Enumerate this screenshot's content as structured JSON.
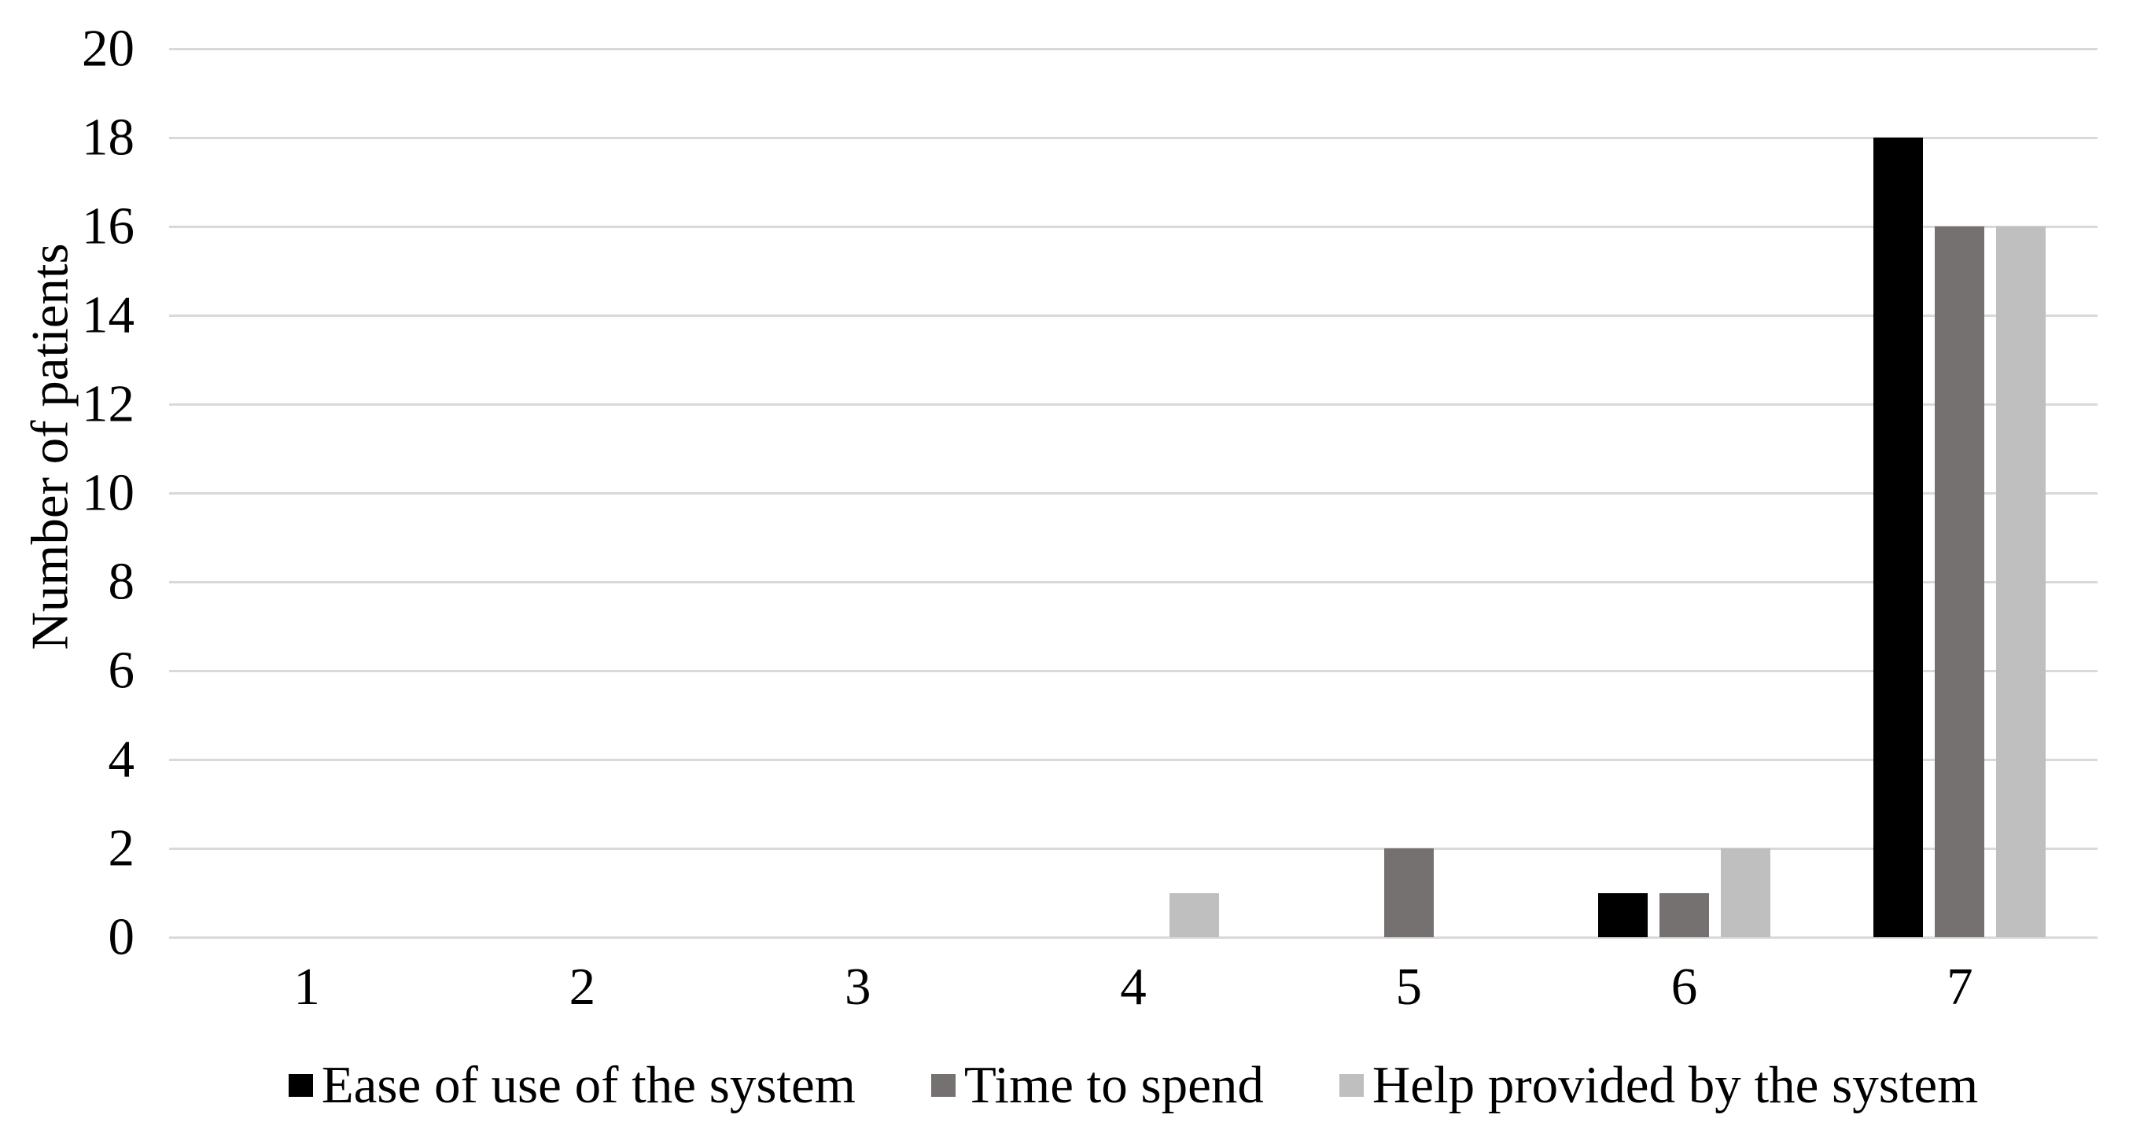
{
  "chart_data": {
    "type": "bar",
    "title": "",
    "xlabel": "",
    "ylabel": "Number of patients",
    "categories": [
      "1",
      "2",
      "3",
      "4",
      "5",
      "6",
      "7"
    ],
    "series": [
      {
        "name": "Ease of use of the system",
        "color": "#000000",
        "values": [
          0,
          0,
          0,
          0,
          0,
          1,
          18
        ]
      },
      {
        "name": "Time to spend",
        "color": "#767171",
        "values": [
          0,
          0,
          0,
          0,
          2,
          1,
          16
        ]
      },
      {
        "name": "Help provided by the system",
        "color": "#bfbfbf",
        "values": [
          0,
          0,
          0,
          1,
          0,
          2,
          16
        ]
      }
    ],
    "ylim": [
      0,
      20
    ],
    "ytick_step": 2,
    "yticks": [
      0,
      2,
      4,
      6,
      8,
      10,
      12,
      14,
      16,
      18,
      20
    ],
    "grid": "horizontal",
    "grid_color": "#d9d9d9",
    "legend_position": "bottom"
  }
}
